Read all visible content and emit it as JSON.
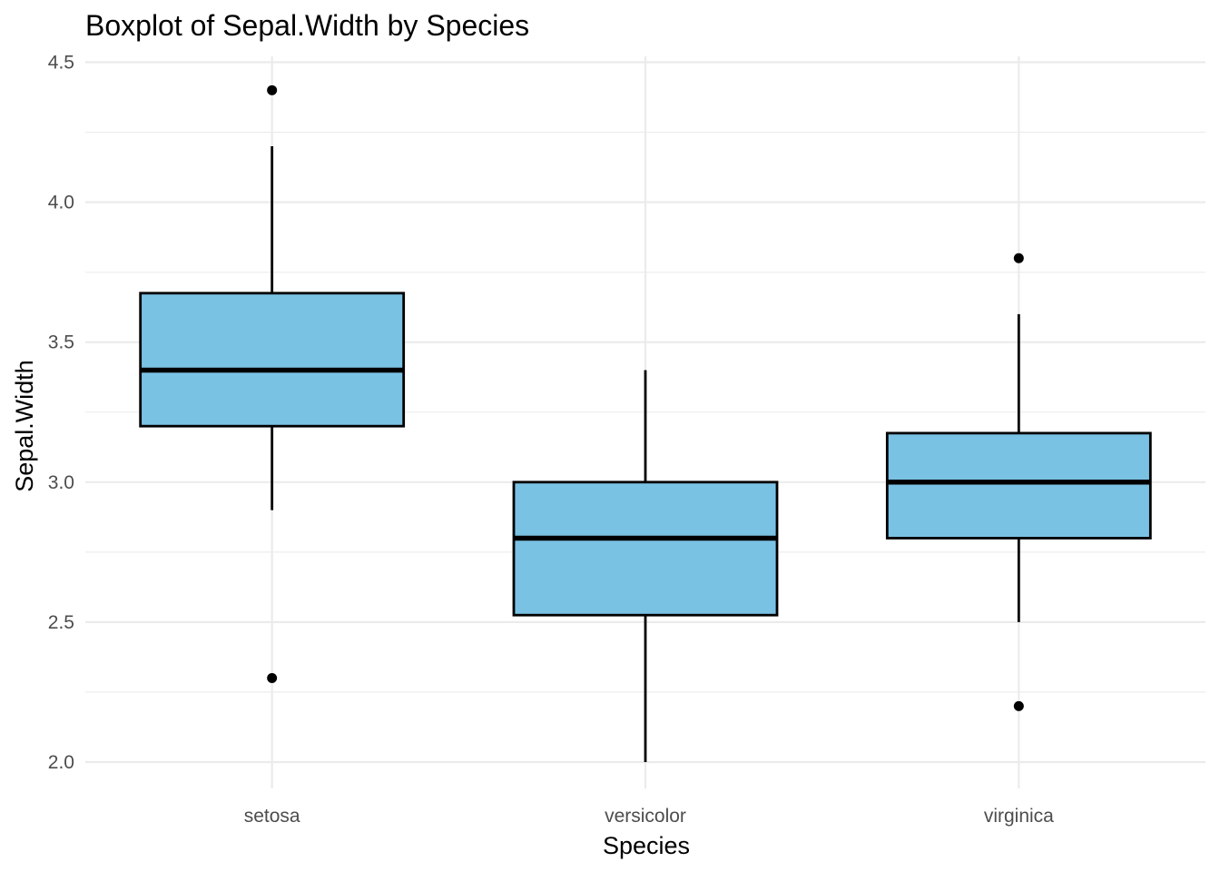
{
  "chart_data": {
    "type": "boxplot",
    "title": "Boxplot of Sepal.Width by Species",
    "xlabel": "Species",
    "ylabel": "Sepal.Width",
    "ylim": [
      1.9,
      4.53
    ],
    "yticks": [
      "2.0",
      "2.5",
      "3.0",
      "3.5",
      "4.0",
      "4.5"
    ],
    "grid": true,
    "legend": "none",
    "categories": [
      "setosa",
      "versicolor",
      "virginica"
    ],
    "boxes": [
      {
        "category": "setosa",
        "whisker_low": 2.9,
        "q1": 3.2,
        "median": 3.4,
        "q3": 3.675,
        "whisker_high": 4.2,
        "outliers": [
          4.4,
          2.3
        ]
      },
      {
        "category": "versicolor",
        "whisker_low": 2.0,
        "q1": 2.525,
        "median": 2.8,
        "q3": 3.0,
        "whisker_high": 3.4,
        "outliers": []
      },
      {
        "category": "virginica",
        "whisker_low": 2.5,
        "q1": 2.8,
        "median": 3.0,
        "q3": 3.175,
        "whisker_high": 3.6,
        "outliers": [
          3.8,
          2.2
        ]
      }
    ],
    "colors": {
      "box_fill": "#7AC2E4",
      "box_stroke": "#000000",
      "grid": "#EBEBEB",
      "background": "#FFFFFF"
    }
  }
}
